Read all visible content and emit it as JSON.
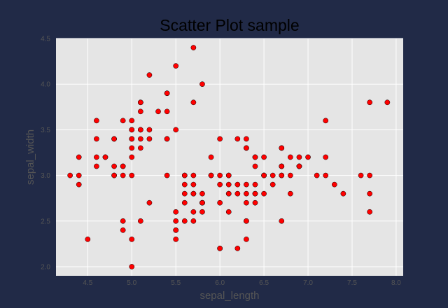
{
  "colors": {
    "figure_bg": "#212a47",
    "plot_bg": "#e5e5e5",
    "grid": "#ffffff",
    "marker": "#ff0000",
    "marker_edge": "#000000",
    "title": "#000000",
    "tick_label": "#555555",
    "axis_label": "#555555"
  },
  "chart_data": {
    "type": "scatter",
    "title": "Scatter Plot sample",
    "xlabel": "sepal_length",
    "ylabel": "sepal_width",
    "xlim": [
      4.14,
      8.08
    ],
    "ylim": [
      1.9,
      4.5
    ],
    "grid": true,
    "xticks": [
      4.5,
      5.0,
      5.5,
      6.0,
      6.5,
      7.0,
      7.5,
      8.0
    ],
    "yticks": [
      2.0,
      2.5,
      3.0,
      3.5,
      4.0,
      4.5
    ],
    "xtick_labels": [
      "4.5",
      "5.0",
      "5.5",
      "6.0",
      "6.5",
      "7.0",
      "7.5",
      "8.0"
    ],
    "ytick_labels": [
      "2.0",
      "2.5",
      "3.0",
      "3.5",
      "4.0",
      "4.5"
    ],
    "points": [
      [
        5.1,
        3.5
      ],
      [
        4.9,
        3.0
      ],
      [
        4.7,
        3.2
      ],
      [
        4.6,
        3.1
      ],
      [
        5.0,
        3.6
      ],
      [
        5.4,
        3.9
      ],
      [
        4.6,
        3.4
      ],
      [
        5.0,
        3.4
      ],
      [
        4.4,
        2.9
      ],
      [
        4.9,
        3.1
      ],
      [
        5.4,
        3.7
      ],
      [
        4.8,
        3.4
      ],
      [
        4.8,
        3.0
      ],
      [
        4.3,
        3.0
      ],
      [
        5.8,
        4.0
      ],
      [
        5.7,
        4.4
      ],
      [
        5.4,
        3.9
      ],
      [
        5.1,
        3.5
      ],
      [
        5.7,
        3.8
      ],
      [
        5.1,
        3.8
      ],
      [
        5.4,
        3.4
      ],
      [
        5.1,
        3.7
      ],
      [
        4.6,
        3.6
      ],
      [
        5.1,
        3.3
      ],
      [
        4.8,
        3.4
      ],
      [
        5.0,
        3.0
      ],
      [
        5.0,
        3.4
      ],
      [
        5.2,
        3.5
      ],
      [
        5.2,
        3.4
      ],
      [
        4.7,
        3.2
      ],
      [
        4.8,
        3.1
      ],
      [
        5.4,
        3.4
      ],
      [
        5.2,
        4.1
      ],
      [
        5.5,
        4.2
      ],
      [
        4.9,
        3.1
      ],
      [
        5.0,
        3.2
      ],
      [
        5.5,
        3.5
      ],
      [
        4.9,
        3.6
      ],
      [
        4.4,
        3.0
      ],
      [
        5.1,
        3.4
      ],
      [
        5.0,
        3.5
      ],
      [
        4.5,
        2.3
      ],
      [
        4.4,
        3.2
      ],
      [
        5.0,
        3.5
      ],
      [
        5.1,
        3.8
      ],
      [
        4.8,
        3.0
      ],
      [
        5.1,
        3.8
      ],
      [
        4.6,
        3.2
      ],
      [
        5.3,
        3.7
      ],
      [
        5.0,
        3.3
      ],
      [
        7.0,
        3.2
      ],
      [
        6.4,
        3.2
      ],
      [
        6.9,
        3.1
      ],
      [
        5.5,
        2.3
      ],
      [
        6.5,
        2.8
      ],
      [
        5.7,
        2.8
      ],
      [
        6.3,
        3.3
      ],
      [
        4.9,
        2.4
      ],
      [
        6.6,
        2.9
      ],
      [
        5.2,
        2.7
      ],
      [
        5.0,
        2.0
      ],
      [
        5.9,
        3.0
      ],
      [
        6.0,
        2.2
      ],
      [
        6.1,
        2.9
      ],
      [
        5.6,
        2.9
      ],
      [
        6.7,
        3.1
      ],
      [
        5.6,
        3.0
      ],
      [
        5.8,
        2.7
      ],
      [
        6.2,
        2.2
      ],
      [
        5.6,
        2.5
      ],
      [
        5.9,
        3.2
      ],
      [
        6.1,
        2.8
      ],
      [
        6.3,
        2.5
      ],
      [
        6.1,
        2.8
      ],
      [
        6.4,
        2.9
      ],
      [
        6.6,
        3.0
      ],
      [
        6.8,
        2.8
      ],
      [
        6.7,
        3.0
      ],
      [
        6.0,
        2.9
      ],
      [
        5.7,
        2.6
      ],
      [
        5.5,
        2.4
      ],
      [
        5.5,
        2.4
      ],
      [
        5.8,
        2.7
      ],
      [
        6.0,
        2.7
      ],
      [
        5.4,
        3.0
      ],
      [
        6.0,
        3.4
      ],
      [
        6.7,
        3.1
      ],
      [
        6.3,
        2.3
      ],
      [
        5.6,
        3.0
      ],
      [
        5.5,
        2.5
      ],
      [
        5.5,
        2.6
      ],
      [
        6.1,
        3.0
      ],
      [
        5.8,
        2.6
      ],
      [
        5.0,
        2.3
      ],
      [
        5.6,
        2.7
      ],
      [
        5.7,
        3.0
      ],
      [
        5.7,
        2.9
      ],
      [
        6.2,
        2.9
      ],
      [
        5.1,
        2.5
      ],
      [
        5.7,
        2.8
      ],
      [
        6.3,
        3.3
      ],
      [
        5.8,
        2.7
      ],
      [
        7.1,
        3.0
      ],
      [
        6.3,
        2.9
      ],
      [
        6.5,
        3.0
      ],
      [
        7.6,
        3.0
      ],
      [
        4.9,
        2.5
      ],
      [
        7.3,
        2.9
      ],
      [
        6.7,
        2.5
      ],
      [
        7.2,
        3.6
      ],
      [
        6.5,
        3.2
      ],
      [
        6.4,
        2.7
      ],
      [
        6.8,
        3.0
      ],
      [
        5.7,
        2.5
      ],
      [
        5.8,
        2.8
      ],
      [
        6.4,
        3.2
      ],
      [
        6.5,
        3.0
      ],
      [
        7.7,
        3.8
      ],
      [
        7.7,
        2.6
      ],
      [
        6.0,
        2.2
      ],
      [
        6.9,
        3.2
      ],
      [
        5.6,
        2.8
      ],
      [
        7.7,
        2.8
      ],
      [
        6.3,
        2.7
      ],
      [
        6.7,
        3.3
      ],
      [
        7.2,
        3.2
      ],
      [
        6.2,
        2.8
      ],
      [
        6.1,
        3.0
      ],
      [
        6.4,
        2.8
      ],
      [
        7.2,
        3.0
      ],
      [
        7.4,
        2.8
      ],
      [
        7.9,
        3.8
      ],
      [
        6.4,
        2.8
      ],
      [
        6.3,
        2.8
      ],
      [
        6.1,
        2.6
      ],
      [
        7.7,
        3.0
      ],
      [
        6.3,
        3.4
      ],
      [
        6.4,
        3.1
      ],
      [
        6.0,
        3.0
      ],
      [
        6.9,
        3.1
      ],
      [
        6.7,
        3.1
      ],
      [
        6.9,
        3.1
      ],
      [
        5.8,
        2.7
      ],
      [
        6.8,
        3.2
      ],
      [
        6.7,
        3.3
      ],
      [
        6.7,
        3.0
      ],
      [
        6.3,
        2.5
      ],
      [
        6.5,
        3.0
      ],
      [
        6.2,
        3.4
      ],
      [
        5.9,
        3.0
      ]
    ]
  }
}
